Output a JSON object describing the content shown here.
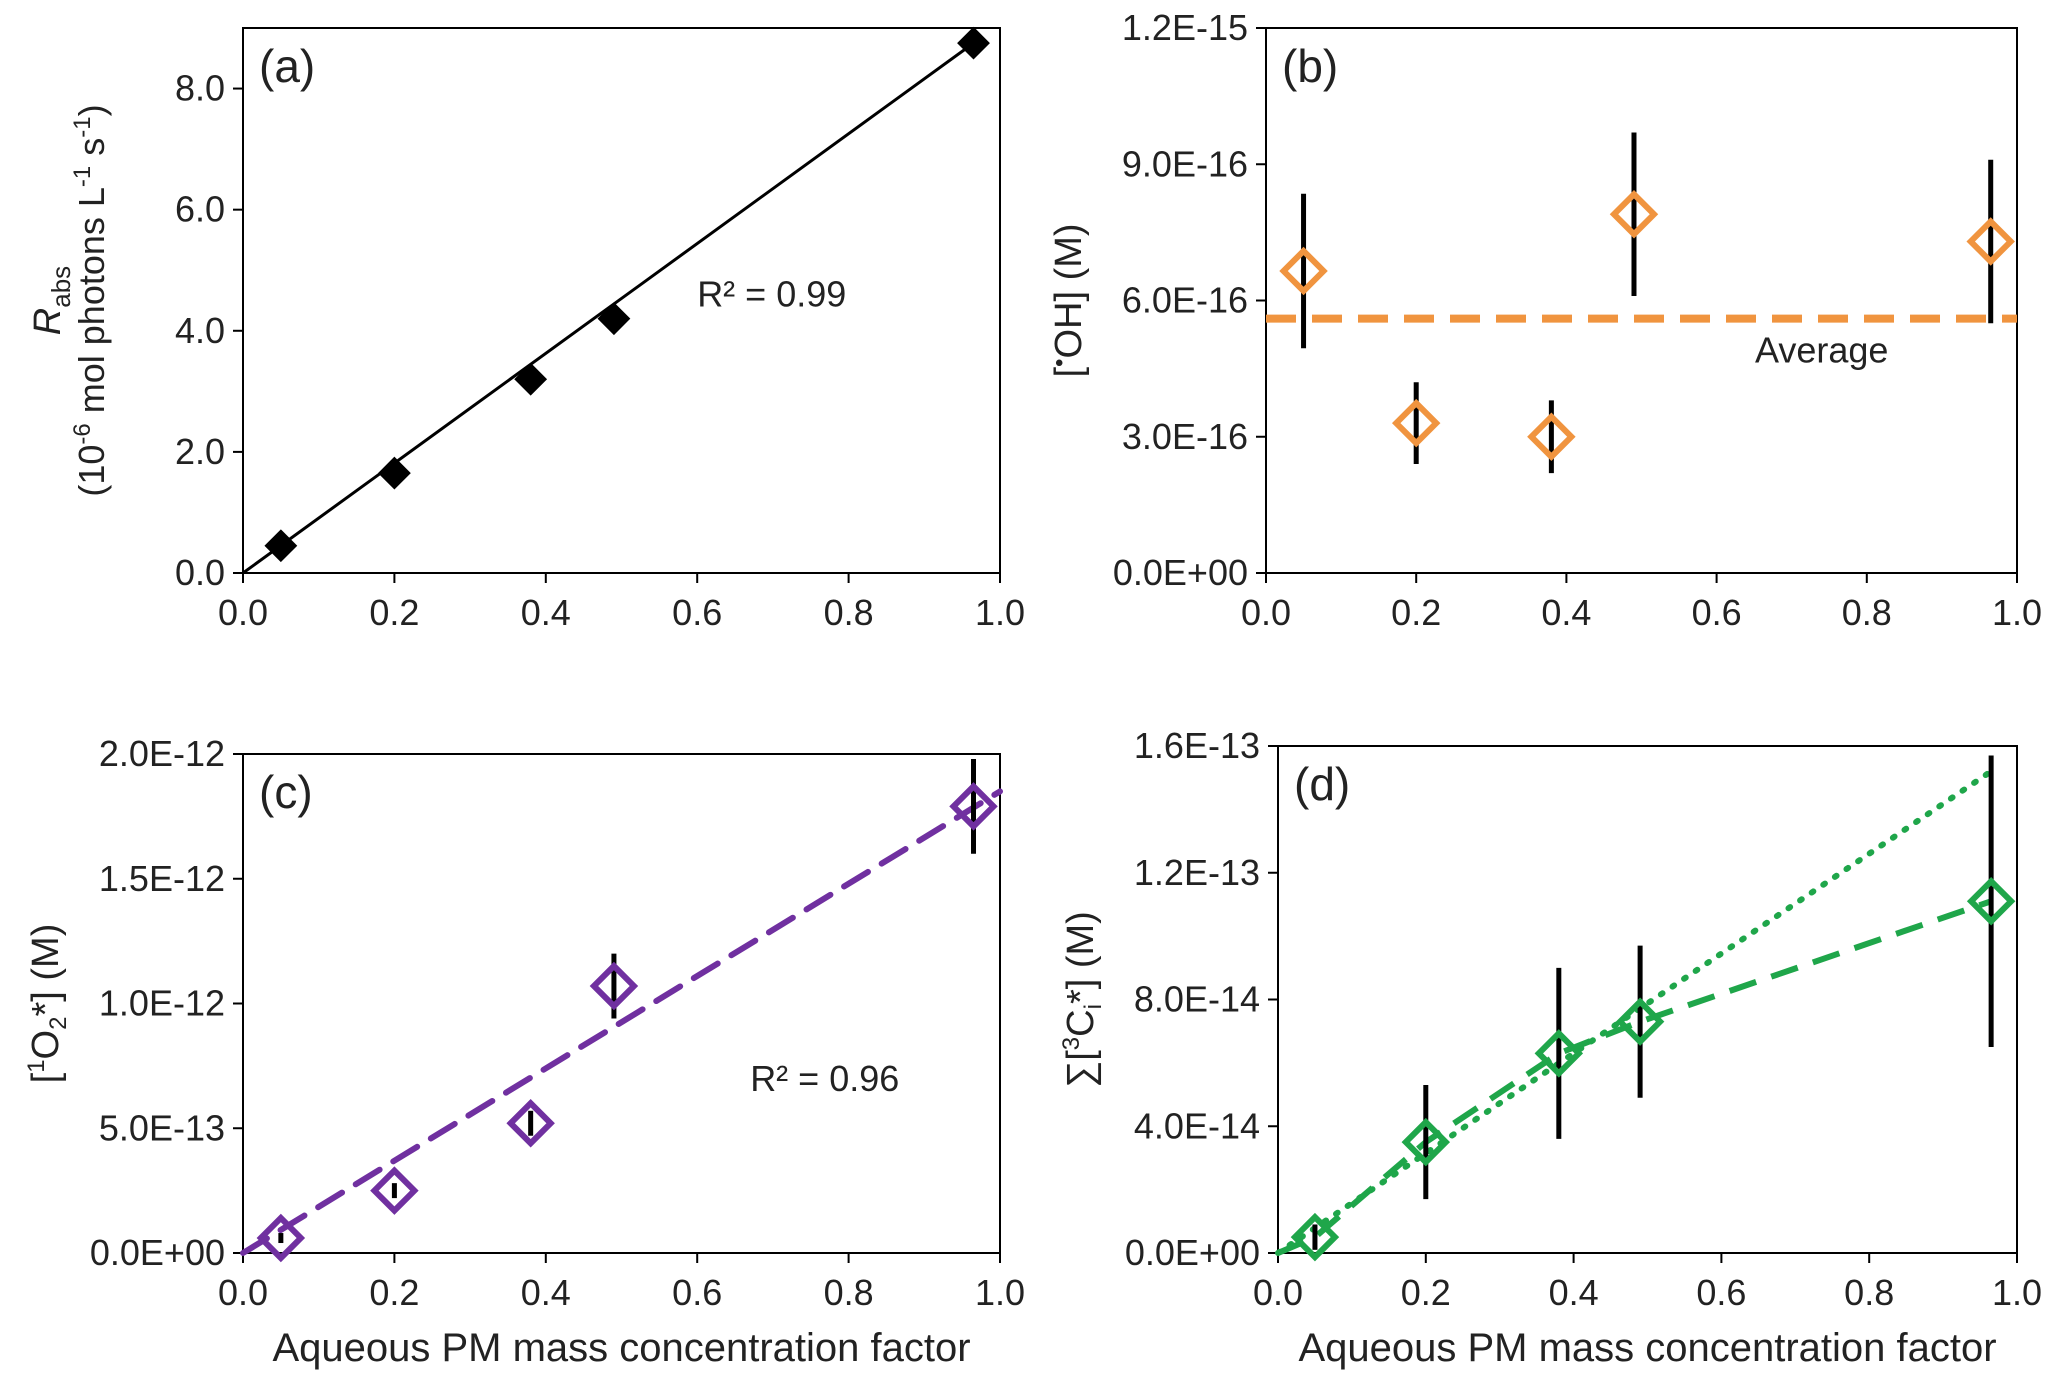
{
  "xlabel_shared": "Aqueous PM mass concentration factor",
  "chart_data": [
    {
      "id": "a",
      "type": "scatter",
      "panel_label": "(a)",
      "ylabel_line1": "R",
      "ylabel_line1_sub": "abs",
      "ylabel_line2_prefix": "(10",
      "ylabel_line2_sup1": "-6",
      "ylabel_line2_mid": " mol photons L",
      "ylabel_line2_sup2": "-1",
      "ylabel_line2_mid2": " s",
      "ylabel_line2_sup3": "-1",
      "ylabel_line2_end": ")",
      "xlabel": "",
      "xlim": [
        0,
        1.0
      ],
      "ylim": [
        0,
        9.0
      ],
      "xticks": [
        "0.0",
        "0.2",
        "0.4",
        "0.6",
        "0.8",
        "1.0"
      ],
      "yticks": [
        "0.0",
        "2.0",
        "4.0",
        "6.0",
        "8.0"
      ],
      "ytick_values": [
        0,
        2,
        4,
        6,
        8
      ],
      "marker": "diamond-filled",
      "color": "#000000",
      "series": [
        {
          "x": [
            0.05,
            0.2,
            0.38,
            0.49,
            0.965
          ],
          "y": [
            0.45,
            1.65,
            3.2,
            4.2,
            8.75
          ]
        }
      ],
      "fit": {
        "style": "solid",
        "color": "#000000",
        "x0": 0,
        "y0": 0,
        "x1": 0.965,
        "y1": 8.75
      },
      "annotation": "R² = 0.99",
      "annotation_pos": {
        "x": 0.6,
        "y": 4.4
      }
    },
    {
      "id": "b",
      "type": "scatter",
      "panel_label": "(b)",
      "ylabel_pre": "[",
      "ylabel_sup": "•",
      "ylabel_post": "OH] (M)",
      "xlabel": "",
      "xlim": [
        0,
        1.0
      ],
      "ylim": [
        0,
        1.2e-15
      ],
      "xticks": [
        "0.0",
        "0.2",
        "0.4",
        "0.6",
        "0.8",
        "1.0"
      ],
      "yticks": [
        "0.0E+00",
        "3.0E-16",
        "6.0E-16",
        "9.0E-16",
        "1.2E-15"
      ],
      "ytick_values": [
        0,
        3e-16,
        6e-16,
        9e-16,
        1.2e-15
      ],
      "marker": "diamond-open",
      "color": "#F0943F",
      "series": [
        {
          "x": [
            0.05,
            0.2,
            0.38,
            0.49,
            0.965
          ],
          "y": [
            6.65e-16,
            3.3e-16,
            3e-16,
            7.9e-16,
            7.3e-16
          ],
          "err": [
            1.7e-16,
            9e-17,
            8e-17,
            1.8e-16,
            1.8e-16
          ]
        }
      ],
      "average": {
        "value": 5.6e-16,
        "label": "Average",
        "color": "#F0943F"
      }
    },
    {
      "id": "c",
      "type": "scatter",
      "panel_label": "(c)",
      "ylabel_pre": "[",
      "ylabel_sup": "1",
      "ylabel_mid": "O",
      "ylabel_sub": "2",
      "ylabel_post": "*] (M)",
      "xlabel": "Aqueous PM mass concentration factor",
      "xlim": [
        0,
        1.0
      ],
      "ylim": [
        0,
        2e-12
      ],
      "xticks": [
        "0.0",
        "0.2",
        "0.4",
        "0.6",
        "0.8",
        "1.0"
      ],
      "yticks": [
        "0.0E+00",
        "5.0E-13",
        "1.0E-12",
        "1.5E-12",
        "2.0E-12"
      ],
      "ytick_values": [
        0,
        5e-13,
        1e-12,
        1.5e-12,
        2e-12
      ],
      "marker": "diamond-open",
      "color": "#7030A0",
      "series": [
        {
          "x": [
            0.05,
            0.2,
            0.38,
            0.49,
            0.965
          ],
          "y": [
            6e-14,
            2.5e-13,
            5.2e-13,
            1.07e-12,
            1.79e-12
          ],
          "err": [
            2e-14,
            3e-14,
            5e-14,
            1.3e-13,
            1.9e-13
          ]
        }
      ],
      "fit": {
        "style": "dashed",
        "color": "#7030A0",
        "x0": 0,
        "y0": 0,
        "x1": 1.0,
        "y1": 1.85e-12
      },
      "annotation": "R² = 0.96",
      "annotation_pos": {
        "x": 0.67,
        "y": 6.5e-13
      }
    },
    {
      "id": "d",
      "type": "scatter",
      "panel_label": "(d)",
      "ylabel_pre": "∑[",
      "ylabel_sup": "3",
      "ylabel_mid": "C",
      "ylabel_sub": "i",
      "ylabel_post": "*] (M)",
      "xlabel": "Aqueous PM mass concentration factor",
      "xlim": [
        0,
        1.0
      ],
      "ylim": [
        0,
        1.6e-13
      ],
      "xticks": [
        "0.0",
        "0.2",
        "0.4",
        "0.6",
        "0.8",
        "1.0"
      ],
      "yticks": [
        "0.0E+00",
        "4.0E-14",
        "8.0E-14",
        "1.2E-13",
        "1.6E-13"
      ],
      "ytick_values": [
        0,
        4e-14,
        8e-14,
        1.2e-13,
        1.6e-13
      ],
      "marker": "diamond-open",
      "color": "#1FA64A",
      "series": [
        {
          "x": [
            0.05,
            0.2,
            0.38,
            0.49,
            0.965
          ],
          "y": [
            5e-15,
            3.5e-14,
            6.3e-14,
            7.3e-14,
            1.11e-13
          ],
          "err": [
            4e-15,
            1.8e-14,
            2.7e-14,
            2.4e-14,
            4.6e-14
          ]
        }
      ],
      "fit_dotted": {
        "style": "dotted",
        "color": "#1FA64A",
        "x": [
          0,
          0.965
        ],
        "y": [
          0,
          1.52e-13
        ]
      },
      "fit_dashed": {
        "style": "dashed",
        "color": "#1FA64A",
        "x": [
          0,
          0.05,
          0.2,
          0.38,
          0.49,
          0.965
        ],
        "y": [
          0,
          5e-15,
          3.5e-14,
          6.3e-14,
          7.3e-14,
          1.11e-13
        ]
      }
    }
  ]
}
